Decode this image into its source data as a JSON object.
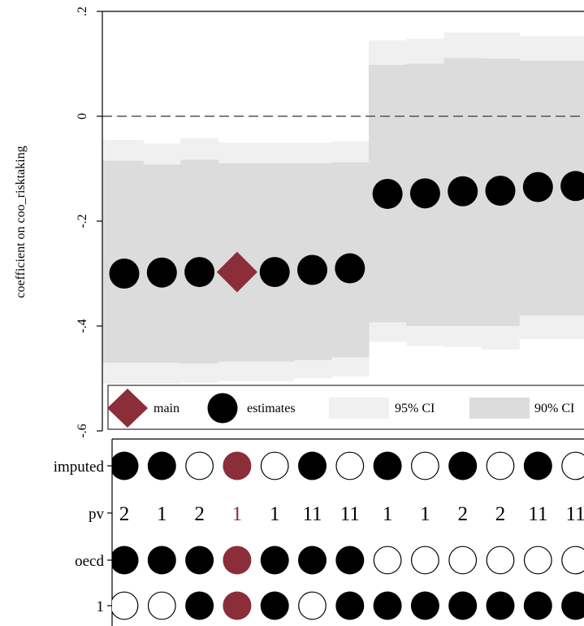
{
  "chart_data": {
    "type": "scatter",
    "ylabel": "coefficient on coo_risktaking",
    "ylim": [
      -0.6,
      0.2
    ],
    "yticks": [
      {
        "value": 0.2,
        "label": ".2"
      },
      {
        "value": 0,
        "label": "0"
      },
      {
        "value": -0.2,
        "label": "-.2"
      },
      {
        "value": -0.4,
        "label": "-.4"
      },
      {
        "value": -0.6,
        "label": "-.6"
      }
    ],
    "reference_line": 0,
    "main_index": 4,
    "specs": [
      {
        "x": 1,
        "estimate": -0.3,
        "ci95": [
          -0.51,
          -0.045
        ],
        "ci90": [
          -0.47,
          -0.085
        ],
        "imputed": true,
        "pv": "2",
        "oecd": true,
        "one": false
      },
      {
        "x": 2,
        "estimate": -0.298,
        "ci95": [
          -0.51,
          -0.052
        ],
        "ci90": [
          -0.47,
          -0.092
        ],
        "imputed": true,
        "pv": "1",
        "oecd": true,
        "one": false
      },
      {
        "x": 3,
        "estimate": -0.297,
        "ci95": [
          -0.508,
          -0.042
        ],
        "ci90": [
          -0.472,
          -0.083
        ],
        "imputed": false,
        "pv": "2",
        "oecd": true,
        "one": true
      },
      {
        "x": 4,
        "estimate": -0.297,
        "ci95": [
          -0.505,
          -0.05
        ],
        "ci90": [
          -0.468,
          -0.09
        ],
        "imputed": true,
        "pv": "1",
        "oecd": true,
        "one": true
      },
      {
        "x": 5,
        "estimate": -0.297,
        "ci95": [
          -0.505,
          -0.05
        ],
        "ci90": [
          -0.468,
          -0.09
        ],
        "imputed": false,
        "pv": "1",
        "oecd": true,
        "one": true
      },
      {
        "x": 6,
        "estimate": -0.293,
        "ci95": [
          -0.5,
          -0.05
        ],
        "ci90": [
          -0.465,
          -0.09
        ],
        "imputed": true,
        "pv": "11",
        "oecd": true,
        "one": false
      },
      {
        "x": 7,
        "estimate": -0.29,
        "ci95": [
          -0.496,
          -0.048
        ],
        "ci90": [
          -0.46,
          -0.088
        ],
        "imputed": false,
        "pv": "11",
        "oecd": true,
        "one": true
      },
      {
        "x": 8,
        "estimate": -0.148,
        "ci95": [
          -0.43,
          0.145
        ],
        "ci90": [
          -0.393,
          0.098
        ],
        "imputed": true,
        "pv": "1",
        "oecd": false,
        "one": true
      },
      {
        "x": 9,
        "estimate": -0.147,
        "ci95": [
          -0.438,
          0.148
        ],
        "ci90": [
          -0.4,
          0.1
        ],
        "imputed": false,
        "pv": "1",
        "oecd": false,
        "one": true
      },
      {
        "x": 10,
        "estimate": -0.143,
        "ci95": [
          -0.44,
          0.16
        ],
        "ci90": [
          -0.4,
          0.111
        ],
        "imputed": true,
        "pv": "2",
        "oecd": false,
        "one": true
      },
      {
        "x": 11,
        "estimate": -0.142,
        "ci95": [
          -0.445,
          0.16
        ],
        "ci90": [
          -0.4,
          0.11
        ],
        "imputed": false,
        "pv": "2",
        "oecd": false,
        "one": true
      },
      {
        "x": 12,
        "estimate": -0.135,
        "ci95": [
          -0.425,
          0.153
        ],
        "ci90": [
          -0.38,
          0.106
        ],
        "imputed": true,
        "pv": "11",
        "oecd": false,
        "one": true
      },
      {
        "x": 13,
        "estimate": -0.133,
        "ci95": [
          -0.425,
          0.153
        ],
        "ci90": [
          -0.38,
          0.106
        ],
        "imputed": false,
        "pv": "11",
        "oecd": false,
        "one": true
      }
    ],
    "indicator_rows": [
      {
        "key": "imputed",
        "label": "imputed"
      },
      {
        "key": "pv",
        "label": "pv"
      },
      {
        "key": "oecd",
        "label": "oecd"
      },
      {
        "key": "one",
        "label": "1"
      }
    ],
    "legend": [
      {
        "key": "main",
        "label": "main"
      },
      {
        "key": "estimates",
        "label": "estimates"
      },
      {
        "key": "ci95",
        "label": "95% CI"
      },
      {
        "key": "ci90",
        "label": "90% CI"
      }
    ],
    "legend_position": "bottom",
    "colors": {
      "main": "#8b2e3a",
      "estimate": "#000000",
      "ci95": "#f0f0f0",
      "ci90": "#dcdcdc",
      "reference_line": "#555555"
    }
  }
}
